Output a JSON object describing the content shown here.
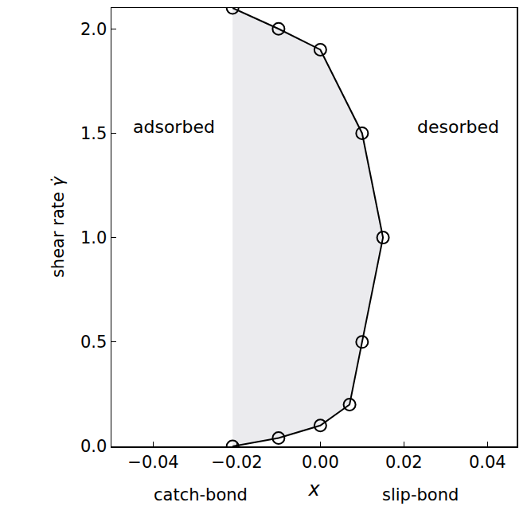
{
  "chart_data": {
    "type": "line",
    "x": [
      -0.021,
      -0.01,
      0.0,
      0.01,
      0.015,
      0.01,
      0.007,
      0.0,
      -0.01,
      -0.021
    ],
    "values": [
      2.1,
      2.0,
      1.9,
      1.5,
      1.0,
      0.5,
      0.2,
      0.1,
      0.04,
      0.0
    ],
    "color": "#000000",
    "marker": "circle-open",
    "fill_color": "#ebebee",
    "xlabel": "x",
    "xlabel_left": "catch-bond",
    "xlabel_right": "slip-bond",
    "ylabel": "shear rate",
    "ylabel_symbol": "γ̇",
    "xlim": [
      -0.05,
      0.047
    ],
    "ylim": [
      0,
      2.1
    ],
    "xticks": [
      {
        "value": -0.04,
        "label": "−0.04"
      },
      {
        "value": -0.02,
        "label": "−0.02"
      },
      {
        "value": 0,
        "label": "0.00"
      },
      {
        "value": 0.02,
        "label": "0.02"
      },
      {
        "value": 0.04,
        "label": "0.04"
      }
    ],
    "yticks": [
      {
        "value": 0,
        "label": "0.0"
      },
      {
        "value": 0.5,
        "label": "0.5"
      },
      {
        "value": 1,
        "label": "1.0"
      },
      {
        "value": 1.5,
        "label": "1.5"
      },
      {
        "value": 2,
        "label": "2.0"
      }
    ],
    "annotations": [
      {
        "text": "adsorbed",
        "x": -0.035,
        "y": 1.53
      },
      {
        "text": "desorbed",
        "x": 0.033,
        "y": 1.53
      }
    ],
    "grid": false
  }
}
